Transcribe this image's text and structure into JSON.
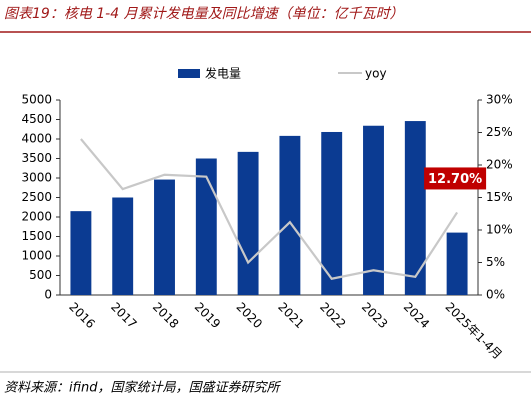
{
  "chart_data": {
    "type": "bar_line",
    "title": "图表19：核电 1-4 月累计发电量及同比增速（单位：亿千瓦时）",
    "source": "资料来源：ifind，国家统计局，国盛证券研究所",
    "categories": [
      "2016",
      "2017",
      "2018",
      "2019",
      "2020",
      "2021",
      "2022",
      "2023",
      "2024",
      "2025年1-4月"
    ],
    "series": [
      {
        "name": "发电量",
        "type": "bar",
        "color": "#0b3b92",
        "values": [
          2150,
          2500,
          2960,
          3500,
          3670,
          4080,
          4180,
          4340,
          4460,
          1600
        ]
      },
      {
        "name": "yoy",
        "type": "line",
        "axis": "y2",
        "color": "#c8c8c8",
        "values": [
          24,
          16.3,
          18.5,
          18.2,
          5,
          11.2,
          2.5,
          3.8,
          2.8,
          12.7
        ],
        "value_labels": [
          null,
          null,
          null,
          null,
          null,
          null,
          null,
          null,
          null,
          "12.70%"
        ]
      }
    ],
    "ylim": [
      0,
      5000
    ],
    "yticks": [
      0,
      500,
      1000,
      1500,
      2000,
      2500,
      3000,
      3500,
      4000,
      4500,
      5000
    ],
    "y2lim": [
      0,
      30
    ],
    "y2ticks": [
      {
        "value": 0,
        "label": "0%"
      },
      {
        "value": 5,
        "label": "5%"
      },
      {
        "value": 10,
        "label": "10%"
      },
      {
        "value": 15,
        "label": "15%"
      },
      {
        "value": 20,
        "label": "20%"
      },
      {
        "value": 25,
        "label": "25%"
      },
      {
        "value": 30,
        "label": "30%"
      }
    ],
    "label_color": "#c00000"
  }
}
